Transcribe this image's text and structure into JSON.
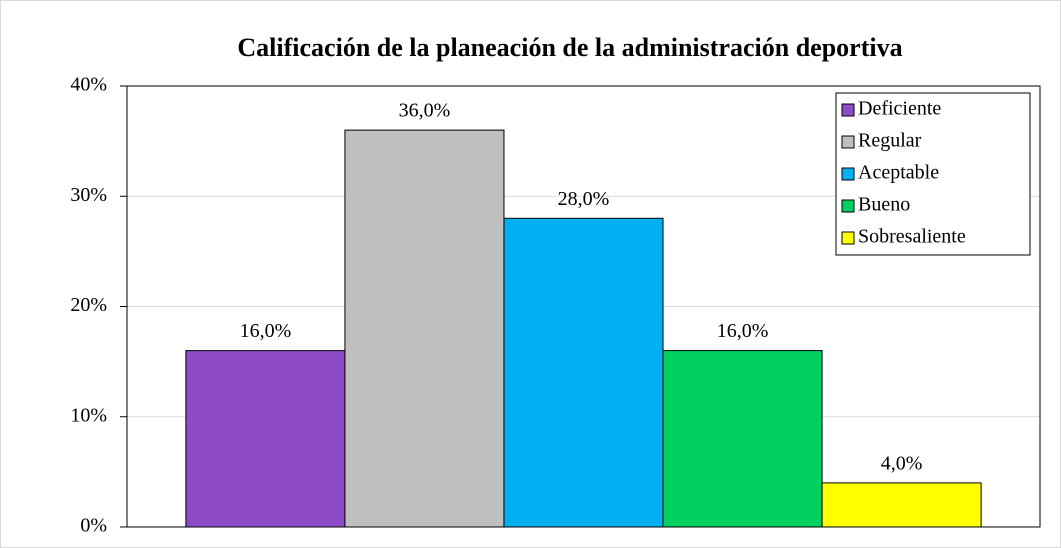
{
  "chart_data": {
    "type": "bar",
    "title": "Calificación de la planeación de la administración deportiva",
    "categories": [
      null
    ],
    "series": [
      {
        "name": "Deficiente",
        "color": "#8e4bc8",
        "values": [
          16
        ],
        "value_labels": [
          "16,0%"
        ]
      },
      {
        "name": "Regular",
        "color": "#bfbfbf",
        "values": [
          36
        ],
        "value_labels": [
          "36,0%"
        ]
      },
      {
        "name": "Aceptable",
        "color": "#00b0f0",
        "values": [
          28
        ],
        "value_labels": [
          "28,0%"
        ]
      },
      {
        "name": "Bueno",
        "color": "#00d060",
        "values": [
          16
        ],
        "value_labels": [
          "16,0%"
        ]
      },
      {
        "name": "Sobresaliente",
        "color": "#ffff00",
        "values": [
          4
        ],
        "value_labels": [
          "4,0%"
        ]
      }
    ],
    "ylim": [
      0,
      40
    ],
    "yticks": [
      {
        "value": 0,
        "label": "0%"
      },
      {
        "value": 10,
        "label": "10%"
      },
      {
        "value": 20,
        "label": "20%"
      },
      {
        "value": 30,
        "label": "30%"
      },
      {
        "value": 40,
        "label": "40%"
      }
    ],
    "grid": true,
    "legend": "top-right"
  }
}
